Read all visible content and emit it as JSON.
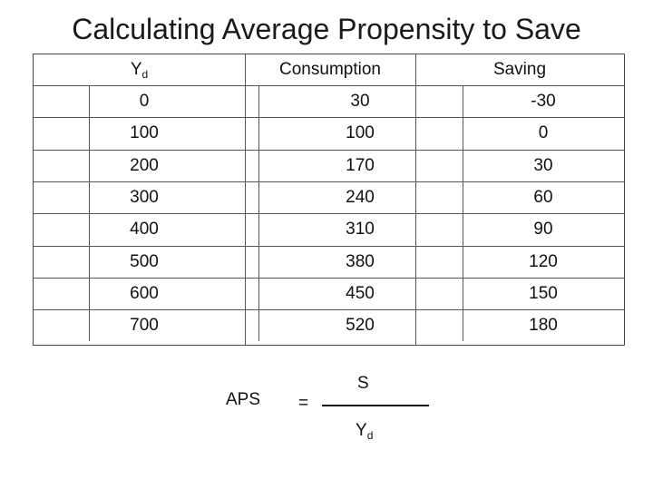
{
  "title": "Calculating Average Propensity to Save",
  "table": {
    "headers": {
      "yd_main": "Y",
      "yd_sub": "d",
      "consumption": "Consumption",
      "saving": "Saving"
    },
    "rows": [
      {
        "yd": "0",
        "consumption": "30",
        "saving": "-30"
      },
      {
        "yd": "100",
        "consumption": "100",
        "saving": "0"
      },
      {
        "yd": "200",
        "consumption": "170",
        "saving": "30"
      },
      {
        "yd": "300",
        "consumption": "240",
        "saving": "60"
      },
      {
        "yd": "400",
        "consumption": "310",
        "saving": "90"
      },
      {
        "yd": "500",
        "consumption": "380",
        "saving": "120"
      },
      {
        "yd": "600",
        "consumption": "450",
        "saving": "150"
      },
      {
        "yd": "700",
        "consumption": "520",
        "saving": "180"
      }
    ]
  },
  "formula": {
    "lhs": "APS",
    "equals": "=",
    "numerator": "S",
    "denominator_main": "Y",
    "denominator_sub": "d"
  }
}
